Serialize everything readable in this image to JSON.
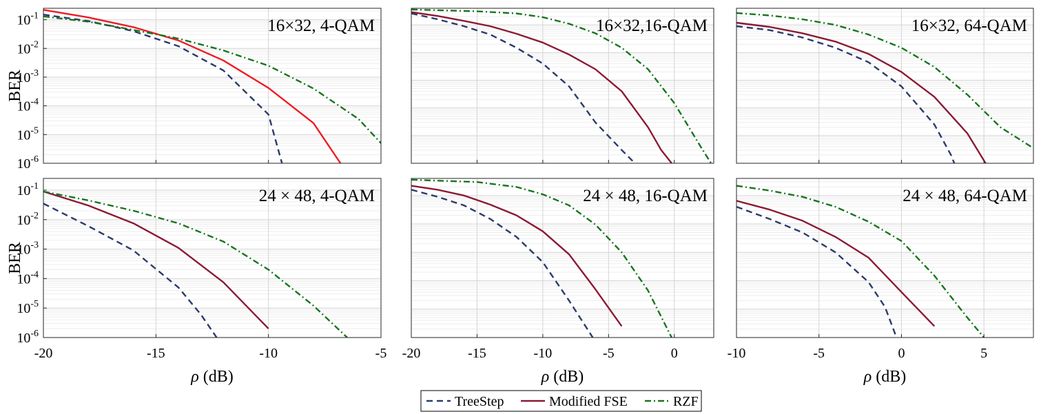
{
  "colors": {
    "treestep": "#2b3a6b",
    "fse": "#8b1a34",
    "fse_highlight": "#ee1c25",
    "rzf": "#17751c",
    "grid": "#dcdcdc",
    "axes": "#262626"
  },
  "legend": {
    "position": "bottom-center",
    "items": [
      {
        "name": "TreeStep",
        "style": "dashed",
        "color_key": "treestep"
      },
      {
        "name": "Modified FSE",
        "style": "solid",
        "color_key": "fse"
      },
      {
        "name": "RZF",
        "style": "dash-dot",
        "color_key": "rzf"
      }
    ]
  },
  "chart_data": [
    {
      "type": "line",
      "title": "16×32, 4-QAM",
      "xlabel": "",
      "ylabel": "BER",
      "xlim": [
        -20,
        -5
      ],
      "ylim": [
        1e-06,
        0.25
      ],
      "yscale": "log",
      "grid": true,
      "xticks": [
        -20,
        -15,
        -10,
        -5
      ],
      "yticks_exp": [
        -1,
        -2,
        -3,
        -4,
        -5,
        -6
      ],
      "fse_color_key": "fse_highlight",
      "series": [
        {
          "name": "TreeStep",
          "x": [
            -20,
            -18,
            -16,
            -14,
            -12,
            -10,
            -9.4
          ],
          "y": [
            0.15,
            0.09,
            0.04,
            0.012,
            0.0017,
            5e-05,
            1e-06
          ]
        },
        {
          "name": "Modified FSE",
          "x": [
            -20,
            -18,
            -16,
            -14,
            -12,
            -10,
            -8,
            -6.8
          ],
          "y": [
            0.22,
            0.12,
            0.055,
            0.019,
            0.0038,
            0.00042,
            2.5e-05,
            1e-06
          ]
        },
        {
          "name": "RZF",
          "x": [
            -20,
            -18,
            -16,
            -14,
            -12,
            -10,
            -8,
            -6,
            -5
          ],
          "y": [
            0.13,
            0.085,
            0.044,
            0.022,
            0.0085,
            0.0025,
            0.0004,
            3.5e-05,
            5e-06
          ]
        }
      ]
    },
    {
      "type": "line",
      "title": "16×32,16-QAM",
      "xlabel": "",
      "ylabel": "",
      "xlim": [
        -20,
        3
      ],
      "ylim": [
        1e-06,
        0.4
      ],
      "yscale": "log",
      "grid": true,
      "xticks": [
        -20,
        -15,
        -10,
        -5,
        0
      ],
      "yticks_exp": [],
      "series": [
        {
          "name": "TreeStep",
          "x": [
            -20,
            -18,
            -16,
            -14,
            -12,
            -10,
            -8,
            -6,
            -4,
            -3
          ],
          "y": [
            0.26,
            0.16,
            0.09,
            0.045,
            0.015,
            0.004,
            0.0006,
            3e-05,
            3e-06,
            1e-06
          ]
        },
        {
          "name": "Modified FSE",
          "x": [
            -20,
            -18,
            -16,
            -14,
            -12,
            -10,
            -8,
            -6,
            -4,
            -2,
            -1,
            -0.2
          ],
          "y": [
            0.29,
            0.21,
            0.14,
            0.09,
            0.048,
            0.023,
            0.0085,
            0.0025,
            0.0004,
            2e-05,
            3e-06,
            1e-06
          ]
        },
        {
          "name": "RZF",
          "x": [
            -20,
            -15,
            -12,
            -10,
            -8,
            -6,
            -4,
            -2,
            0,
            2,
            2.8
          ],
          "y": [
            0.36,
            0.31,
            0.26,
            0.19,
            0.11,
            0.05,
            0.015,
            0.0025,
            0.00015,
            4e-06,
            1e-06
          ]
        }
      ]
    },
    {
      "type": "line",
      "title": "16×32, 64-QAM",
      "xlabel": "",
      "ylabel": "",
      "xlim": [
        -10,
        8
      ],
      "ylim": [
        1e-06,
        0.4
      ],
      "yscale": "log",
      "grid": true,
      "xticks": [
        -10,
        -5,
        0,
        5
      ],
      "yticks_exp": [],
      "series": [
        {
          "name": "TreeStep",
          "x": [
            -10,
            -8,
            -6,
            -4,
            -2,
            0,
            2,
            3,
            3.2
          ],
          "y": [
            0.09,
            0.065,
            0.035,
            0.015,
            0.0045,
            0.0006,
            2.5e-05,
            2e-06,
            1e-06
          ]
        },
        {
          "name": "Modified FSE",
          "x": [
            -10,
            -8,
            -6,
            -4,
            -2,
            0,
            2,
            4,
            5.1
          ],
          "y": [
            0.12,
            0.085,
            0.05,
            0.025,
            0.009,
            0.002,
            0.00025,
            1.2e-05,
            1e-06
          ]
        },
        {
          "name": "RZF",
          "x": [
            -10,
            -8,
            -6,
            -4,
            -2,
            0,
            2,
            4,
            6,
            8
          ],
          "y": [
            0.27,
            0.22,
            0.16,
            0.1,
            0.045,
            0.015,
            0.003,
            0.0003,
            2e-05,
            3.5e-06
          ]
        }
      ]
    },
    {
      "type": "line",
      "title": "24 × 48, 4-QAM",
      "xlabel": "ρ (dB)",
      "ylabel": "BER",
      "xlim": [
        -20,
        -5
      ],
      "ylim": [
        1e-06,
        0.25
      ],
      "yscale": "log",
      "grid": true,
      "xticks": [
        -20,
        -15,
        -10,
        -5
      ],
      "yticks_exp": [
        -1,
        -2,
        -3,
        -4,
        -5,
        -6
      ],
      "series": [
        {
          "name": "TreeStep",
          "x": [
            -20,
            -18,
            -16,
            -14,
            -13,
            -12.3
          ],
          "y": [
            0.035,
            0.006,
            0.0009,
            5e-05,
            6e-06,
            1e-06
          ]
        },
        {
          "name": "Modified FSE",
          "x": [
            -20,
            -18,
            -16,
            -14,
            -12,
            -10
          ],
          "y": [
            0.09,
            0.03,
            0.0075,
            0.0011,
            7.5e-05,
            2e-06
          ]
        },
        {
          "name": "RZF",
          "x": [
            -20,
            -18,
            -16,
            -14,
            -12,
            -10,
            -8,
            -6.5
          ],
          "y": [
            0.09,
            0.045,
            0.02,
            0.0075,
            0.0018,
            0.0002,
            1.2e-05,
            1e-06
          ]
        }
      ]
    },
    {
      "type": "line",
      "title": "24 × 48, 16-QAM",
      "xlabel": "ρ (dB)",
      "ylabel": "",
      "xlim": [
        -20,
        3
      ],
      "ylim": [
        1e-06,
        0.4
      ],
      "yscale": "log",
      "grid": true,
      "xticks": [
        -20,
        -15,
        -10,
        -5,
        0
      ],
      "yticks_exp": [],
      "series": [
        {
          "name": "TreeStep",
          "x": [
            -20,
            -18,
            -16,
            -14,
            -12,
            -10,
            -8,
            -6.2
          ],
          "y": [
            0.16,
            0.09,
            0.045,
            0.015,
            0.0035,
            0.00045,
            2e-05,
            1e-06
          ]
        },
        {
          "name": "Modified FSE",
          "x": [
            -20,
            -18,
            -16,
            -14,
            -12,
            -10,
            -8,
            -6,
            -4
          ],
          "y": [
            0.22,
            0.16,
            0.1,
            0.048,
            0.02,
            0.0055,
            0.00085,
            5e-05,
            2.5e-06
          ]
        },
        {
          "name": "RZF",
          "x": [
            -20,
            -15,
            -12,
            -10,
            -8,
            -6,
            -4,
            -2,
            -0.2
          ],
          "y": [
            0.36,
            0.3,
            0.2,
            0.11,
            0.045,
            0.0095,
            0.001,
            4.5e-05,
            1e-06
          ]
        }
      ]
    },
    {
      "type": "line",
      "title": "24 × 48, 64-QAM",
      "xlabel": "ρ (dB)",
      "ylabel": "",
      "xlim": [
        -10,
        8
      ],
      "ylim": [
        1e-06,
        0.4
      ],
      "yscale": "log",
      "grid": true,
      "xticks": [
        -10,
        -5,
        0,
        5
      ],
      "yticks_exp": [],
      "series": [
        {
          "name": "TreeStep",
          "x": [
            -10,
            -8,
            -6,
            -4,
            -2,
            -1,
            -0.3
          ],
          "y": [
            0.04,
            0.015,
            0.005,
            0.001,
            9e-05,
            1.2e-05,
            1e-06
          ]
        },
        {
          "name": "Modified FSE",
          "x": [
            -10,
            -8,
            -6,
            -4,
            -2,
            0,
            2
          ],
          "y": [
            0.065,
            0.032,
            0.013,
            0.0035,
            0.00065,
            4e-05,
            2.5e-06
          ]
        },
        {
          "name": "RZF",
          "x": [
            -10,
            -8,
            -6,
            -4,
            -2,
            0,
            2,
            4,
            5
          ],
          "y": [
            0.22,
            0.15,
            0.09,
            0.04,
            0.012,
            0.0025,
            0.00015,
            5e-06,
            1e-06
          ]
        }
      ]
    }
  ]
}
